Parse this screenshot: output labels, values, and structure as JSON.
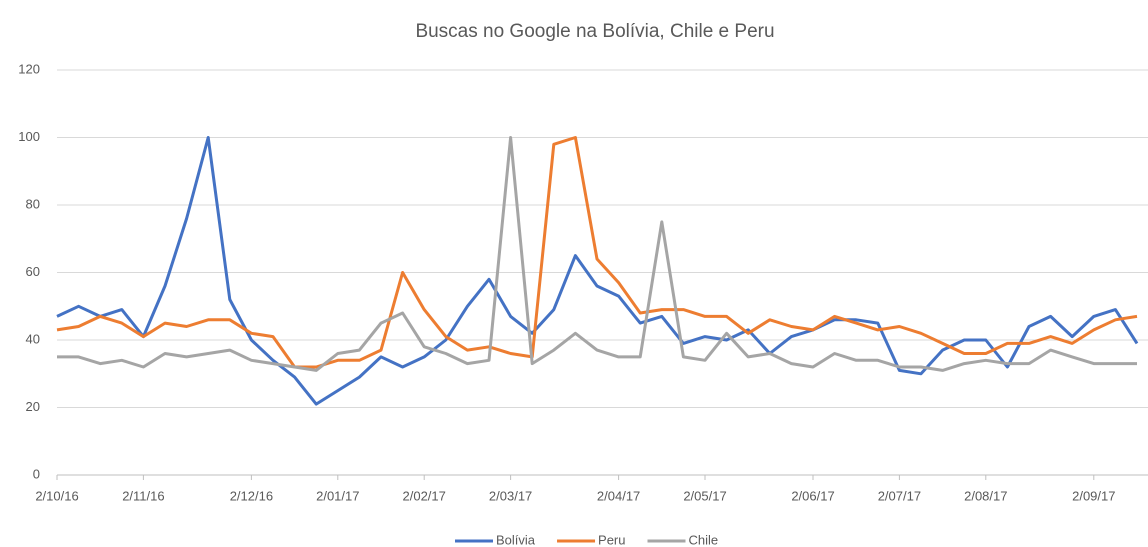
{
  "chart_data": {
    "type": "line",
    "title": "Buscas no Google na Bolívia, Chile e Peru",
    "categories": [
      "2/10/16",
      null,
      null,
      null,
      "2/11/16",
      null,
      null,
      null,
      null,
      "2/12/16",
      null,
      null,
      null,
      "2/01/17",
      null,
      null,
      null,
      "2/02/17",
      null,
      null,
      null,
      "2/03/17",
      null,
      null,
      null,
      null,
      "2/04/17",
      null,
      null,
      null,
      "2/05/17",
      null,
      null,
      null,
      null,
      "2/06/17",
      null,
      null,
      null,
      "2/07/17",
      null,
      null,
      null,
      "2/08/17",
      null,
      null,
      null,
      null,
      "2/09/17",
      null,
      null
    ],
    "series": [
      {
        "name": "Bolívia",
        "color": "#4472c4",
        "values": [
          47,
          50,
          47,
          49,
          41,
          56,
          76,
          100,
          52,
          40,
          34,
          29,
          21,
          25,
          29,
          35,
          32,
          35,
          40,
          50,
          58,
          47,
          42,
          49,
          65,
          56,
          53,
          45,
          47,
          39,
          41,
          40,
          43,
          36,
          41,
          43,
          46,
          46,
          45,
          31,
          30,
          37,
          40,
          40,
          32,
          44,
          47,
          41,
          47,
          49,
          39
        ]
      },
      {
        "name": "Peru",
        "color": "#ed7d31",
        "values": [
          43,
          44,
          47,
          45,
          41,
          45,
          44,
          46,
          46,
          42,
          41,
          32,
          32,
          34,
          34,
          37,
          60,
          49,
          41,
          37,
          38,
          36,
          35,
          98,
          100,
          64,
          57,
          48,
          49,
          49,
          47,
          47,
          42,
          46,
          44,
          43,
          47,
          45,
          43,
          44,
          42,
          39,
          36,
          36,
          39,
          39,
          41,
          39,
          43,
          46,
          47
        ]
      },
      {
        "name": "Chile",
        "color": "#a5a5a5",
        "values": [
          35,
          35,
          33,
          34,
          32,
          36,
          35,
          36,
          37,
          34,
          33,
          32,
          31,
          36,
          37,
          45,
          48,
          38,
          36,
          33,
          34,
          100,
          33,
          37,
          42,
          37,
          35,
          35,
          75,
          35,
          34,
          42,
          35,
          36,
          33,
          32,
          36,
          34,
          34,
          32,
          32,
          31,
          33,
          34,
          33,
          33,
          37,
          35,
          33,
          33,
          33
        ]
      }
    ],
    "ylim": [
      0,
      120
    ],
    "yticks": [
      0,
      20,
      40,
      60,
      80,
      100,
      120
    ],
    "grid": true,
    "legend": "bottom"
  }
}
